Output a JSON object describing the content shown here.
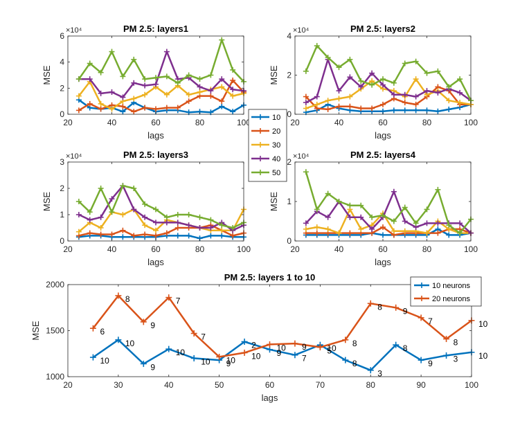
{
  "chart_data": [
    {
      "id": "layers1",
      "type": "line",
      "title": "PM 2.5: layers1",
      "xlabel": "lags",
      "ylabel": "MSE",
      "xlim": [
        20,
        100
      ],
      "ylim": [
        0,
        60000
      ],
      "xticks": [
        "20",
        "40",
        "60",
        "80",
        "100"
      ],
      "yticks": [
        "0",
        "2",
        "4",
        "6"
      ],
      "yexponent": "×10⁴",
      "x": [
        25,
        30,
        35,
        40,
        45,
        50,
        55,
        60,
        65,
        70,
        75,
        80,
        85,
        90,
        95,
        100
      ],
      "series": [
        {
          "name": "10",
          "color": "#0072BD",
          "values": [
            11000,
            5000,
            4000,
            5000,
            2000,
            9000,
            5000,
            2000,
            3000,
            3000,
            1500,
            2000,
            1500,
            6000,
            2000,
            7000
          ]
        },
        {
          "name": "20",
          "color": "#D95319",
          "values": [
            3000,
            8000,
            4000,
            7000,
            6000,
            2000,
            5000,
            4000,
            5000,
            5000,
            10000,
            14000,
            14000,
            10000,
            26000,
            17000
          ]
        },
        {
          "name": "30",
          "color": "#EDB120",
          "values": [
            14000,
            25000,
            8000,
            4000,
            10000,
            12000,
            15000,
            21000,
            15000,
            22000,
            15000,
            17000,
            19000,
            21000,
            14000,
            16000
          ]
        },
        {
          "name": "40",
          "color": "#7E2F8E",
          "values": [
            27000,
            27000,
            16000,
            17000,
            13000,
            24000,
            22000,
            23000,
            48000,
            27000,
            28000,
            21000,
            18000,
            27000,
            19000,
            18000
          ]
        },
        {
          "name": "50",
          "color": "#77AC30",
          "values": [
            27000,
            39000,
            32000,
            48000,
            29000,
            42000,
            27000,
            28000,
            29000,
            24000,
            30000,
            27000,
            30000,
            57000,
            34000,
            25000
          ]
        }
      ]
    },
    {
      "id": "layers2",
      "type": "line",
      "title": "PM 2.5: layers2",
      "xlabel": "lags",
      "ylabel": "MSE",
      "xlim": [
        20,
        100
      ],
      "ylim": [
        0,
        40000
      ],
      "xticks": [
        "20",
        "40",
        "60",
        "80",
        "100"
      ],
      "yticks": [
        "0",
        "2",
        "4"
      ],
      "yexponent": "×10⁴",
      "x": [
        25,
        30,
        35,
        40,
        45,
        50,
        55,
        60,
        65,
        70,
        75,
        80,
        85,
        90,
        95,
        100
      ],
      "series": [
        {
          "name": "10",
          "color": "#0072BD",
          "values": [
            1000,
            2000,
            5000,
            3000,
            2000,
            1500,
            1500,
            1500,
            2000,
            2000,
            2000,
            2000,
            1500,
            2500,
            3500,
            5000
          ]
        },
        {
          "name": "20",
          "color": "#D95319",
          "values": [
            9000,
            3000,
            2500,
            4000,
            4000,
            3000,
            3000,
            5000,
            8000,
            6000,
            5000,
            9000,
            14000,
            12000,
            5000,
            5000
          ]
        },
        {
          "name": "30",
          "color": "#EDB120",
          "values": [
            3000,
            5000,
            7000,
            8000,
            9000,
            13000,
            17000,
            13000,
            12000,
            9000,
            18000,
            10000,
            12000,
            7000,
            6000,
            5000
          ]
        },
        {
          "name": "40",
          "color": "#7E2F8E",
          "values": [
            6000,
            9000,
            28000,
            12000,
            19000,
            14000,
            21000,
            15000,
            10000,
            10000,
            9000,
            12000,
            11000,
            13000,
            11000,
            7000
          ]
        },
        {
          "name": "50",
          "color": "#77AC30",
          "values": [
            22000,
            35000,
            29000,
            24000,
            28000,
            17000,
            15000,
            18000,
            16000,
            26000,
            27000,
            21000,
            22000,
            14000,
            18000,
            7000
          ]
        }
      ]
    },
    {
      "id": "layers3",
      "type": "line",
      "title": "PM 2.5: layers3",
      "xlabel": "lags",
      "ylabel": "MSE",
      "xlim": [
        20,
        100
      ],
      "ylim": [
        0,
        30000
      ],
      "xticks": [
        "20",
        "40",
        "60",
        "80",
        "100"
      ],
      "yticks": [
        "0",
        "1",
        "2",
        "3"
      ],
      "yexponent": "×10⁴",
      "x": [
        25,
        30,
        35,
        40,
        45,
        50,
        55,
        60,
        65,
        70,
        75,
        80,
        85,
        90,
        95,
        100
      ],
      "series": [
        {
          "name": "10",
          "color": "#0072BD",
          "values": [
            1500,
            2000,
            2000,
            1500,
            1500,
            1500,
            1500,
            1500,
            2000,
            2000,
            2000,
            1000,
            2000,
            2000,
            1500,
            1500
          ]
        },
        {
          "name": "20",
          "color": "#D95319",
          "values": [
            2000,
            3000,
            2500,
            2500,
            4000,
            2000,
            2500,
            2000,
            3000,
            5000,
            5000,
            5000,
            6000,
            4000,
            2000,
            3000
          ]
        },
        {
          "name": "30",
          "color": "#EDB120",
          "values": [
            3500,
            7000,
            5000,
            11000,
            10000,
            12000,
            6000,
            4000,
            8000,
            7000,
            6000,
            5000,
            4000,
            4000,
            4000,
            12000
          ]
        },
        {
          "name": "40",
          "color": "#7E2F8E",
          "values": [
            10000,
            8000,
            9000,
            16000,
            21000,
            12000,
            9000,
            7000,
            7000,
            7000,
            6000,
            5000,
            5000,
            7000,
            4000,
            6000
          ]
        },
        {
          "name": "50",
          "color": "#77AC30",
          "values": [
            15000,
            11000,
            20000,
            11000,
            21000,
            20000,
            14000,
            12000,
            9000,
            10000,
            10000,
            9000,
            8000,
            6000,
            5000,
            7000
          ]
        }
      ]
    },
    {
      "id": "layers4",
      "type": "line",
      "title": "PM 2.5: layers4",
      "xlabel": "lags",
      "ylabel": "MSE",
      "xlim": [
        20,
        100
      ],
      "ylim": [
        0,
        20000
      ],
      "xticks": [
        "20",
        "40",
        "60",
        "80",
        "100"
      ],
      "yticks": [
        "0",
        "1",
        "2"
      ],
      "yexponent": "×10⁴",
      "x": [
        25,
        30,
        35,
        40,
        45,
        50,
        55,
        60,
        65,
        70,
        75,
        80,
        85,
        90,
        95,
        100
      ],
      "series": [
        {
          "name": "10",
          "color": "#0072BD",
          "values": [
            1500,
            1500,
            1500,
            1500,
            1500,
            1500,
            2000,
            1500,
            1500,
            1500,
            1500,
            1500,
            3000,
            1500,
            1500,
            2000
          ]
        },
        {
          "name": "20",
          "color": "#D95319",
          "values": [
            2000,
            2000,
            2000,
            2000,
            2000,
            2000,
            2000,
            3500,
            1500,
            2000,
            2000,
            2000,
            2000,
            3000,
            3000,
            2000
          ]
        },
        {
          "name": "30",
          "color": "#EDB120",
          "values": [
            3000,
            3500,
            3000,
            2000,
            8000,
            3000,
            4000,
            7000,
            2500,
            2500,
            2500,
            2000,
            5000,
            3000,
            2000,
            2000
          ]
        },
        {
          "name": "40",
          "color": "#7E2F8E",
          "values": [
            4500,
            7500,
            6000,
            10000,
            6000,
            6000,
            3000,
            6000,
            12500,
            5000,
            3500,
            4500,
            4500,
            4500,
            4500,
            2000
          ]
        },
        {
          "name": "50",
          "color": "#77AC30",
          "values": [
            17500,
            8000,
            12000,
            10000,
            9000,
            9000,
            6000,
            6500,
            5000,
            8500,
            4500,
            8000,
            13000,
            4000,
            2000,
            5500
          ]
        }
      ]
    },
    {
      "id": "layers1to10",
      "type": "line",
      "title": "PM 2.5: layers 1 to 10",
      "xlabel": "lags",
      "ylabel": "MSE",
      "xlim": [
        20,
        100
      ],
      "ylim": [
        1000,
        2000
      ],
      "xticks": [
        "20",
        "30",
        "40",
        "50",
        "60",
        "70",
        "80",
        "90",
        "100"
      ],
      "yticks": [
        "1000",
        "1500",
        "2000"
      ],
      "x": [
        25,
        30,
        35,
        40,
        45,
        50,
        55,
        60,
        65,
        70,
        75,
        80,
        85,
        90,
        95,
        100
      ],
      "series": [
        {
          "name": "10 neurons",
          "color": "#0072BD",
          "values": [
            1210,
            1400,
            1140,
            1300,
            1200,
            1180,
            1380,
            1295,
            1235,
            1345,
            1180,
            1070,
            1345,
            1180,
            1230,
            1265
          ],
          "labels": [
            "10",
            "10",
            "9",
            "10",
            "10",
            "9",
            "2",
            "9",
            "7",
            "10",
            "8",
            "3",
            "8",
            "9",
            "3",
            "10"
          ]
        },
        {
          "name": "20 neurons",
          "color": "#D95319",
          "values": [
            1525,
            1880,
            1595,
            1860,
            1470,
            1215,
            1260,
            1350,
            1360,
            1320,
            1400,
            1795,
            1750,
            1640,
            1410,
            1610
          ],
          "labels": [
            "6",
            "8",
            "9",
            "7",
            "7",
            "10",
            "10",
            "10",
            "9",
            "5",
            "8",
            "8",
            "9",
            "7",
            "8",
            "10"
          ]
        }
      ]
    }
  ],
  "shared_legend": {
    "entries": [
      "10",
      "20",
      "30",
      "40",
      "50"
    ],
    "colors": [
      "#0072BD",
      "#D95319",
      "#EDB120",
      "#7E2F8E",
      "#77AC30"
    ]
  }
}
